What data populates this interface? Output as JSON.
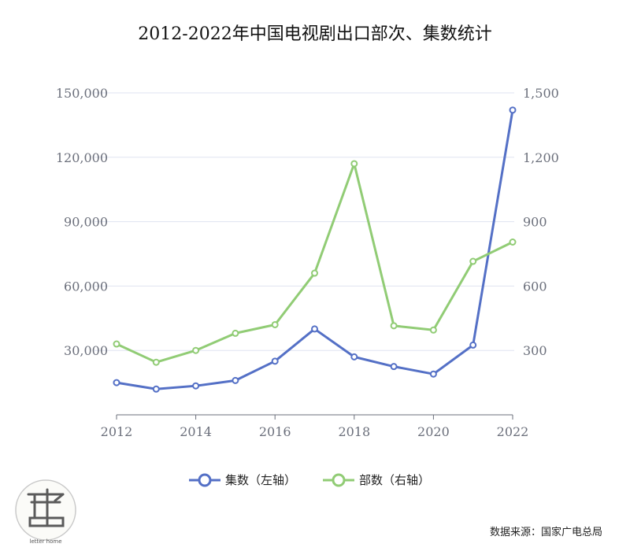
{
  "chart_data": {
    "type": "line",
    "title": "2012-2022年中国电视剧出口部次、集数统计",
    "categories": [
      2012,
      2013,
      2014,
      2015,
      2016,
      2017,
      2018,
      2019,
      2020,
      2021,
      2022
    ],
    "x_tick_labels": [
      "2012",
      "2014",
      "2016",
      "2018",
      "2020",
      "2022"
    ],
    "left_axis": {
      "ylim": [
        0,
        150000
      ],
      "ticks": [
        30000,
        60000,
        90000,
        120000,
        150000
      ],
      "tick_labels": [
        "30,000",
        "60,000",
        "90,000",
        "120,000",
        "150,000"
      ]
    },
    "right_axis": {
      "ylim": [
        0,
        1500
      ],
      "ticks": [
        300,
        600,
        900,
        1200,
        1500
      ],
      "tick_labels": [
        "300",
        "600",
        "900",
        "1,200",
        "1,500"
      ]
    },
    "grid": true,
    "legend_position": "bottom-center",
    "series": [
      {
        "name": "集数（左轴）",
        "axis": "left",
        "color": "#5470c6",
        "values": [
          15000,
          12000,
          13500,
          16000,
          25000,
          40000,
          27000,
          22500,
          19000,
          32500,
          142000
        ]
      },
      {
        "name": "部数（右轴）",
        "axis": "right",
        "color": "#91cc75",
        "values": [
          330,
          245,
          300,
          380,
          420,
          660,
          1170,
          415,
          395,
          715,
          805
        ]
      }
    ]
  },
  "source_text": "数据来源：国家广电总局",
  "logo": {
    "text": "letter home"
  }
}
